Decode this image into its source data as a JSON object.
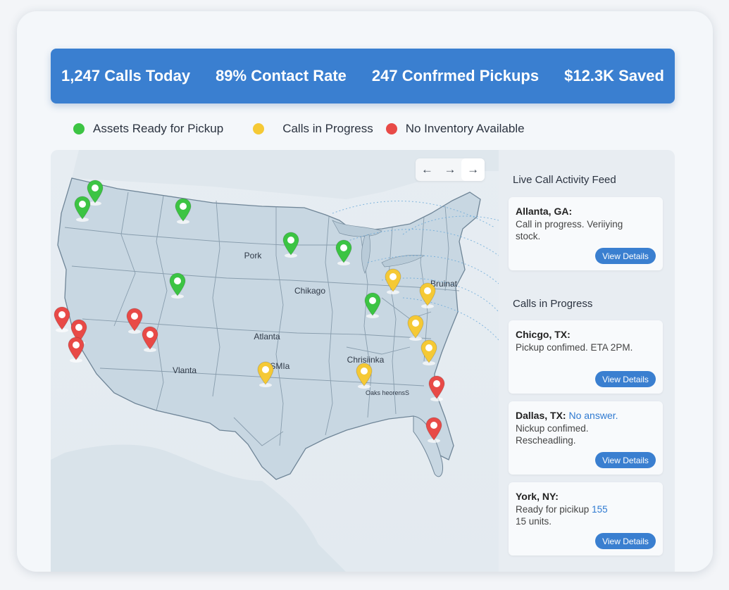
{
  "stats": [
    {
      "label": "1,247 Calls Today"
    },
    {
      "label": "89% Contact Rate"
    },
    {
      "label": "247 Confrmed Pickups"
    },
    {
      "label": "$12.3K Saved"
    }
  ],
  "legend": [
    {
      "label": "Assets Ready for Pickup",
      "color": "#3cc443"
    },
    {
      "label": "Calls in Progress",
      "color": "#f5c935"
    },
    {
      "label": "No Inventory Available",
      "color": "#e84a47"
    }
  ],
  "map": {
    "nav": {
      "back_icon": "←",
      "forward_icon": "→",
      "next_icon": "→"
    },
    "labels": {
      "l1": "Pork",
      "l2": "Chikago",
      "l3": "Atlanta",
      "l4": "Vlanta",
      "l5": "Bruinat",
      "l6": "Chrisiinka",
      "l7": "£SMIa",
      "l8": "Oaks heorensS"
    },
    "pin_colors": {
      "green": "#3cc443",
      "yellow": "#f5c935",
      "red": "#e84a47"
    }
  },
  "sidebar": {
    "feed_title": "Live Call Activity Feed",
    "progress_title": "Calls in Progress",
    "cards": [
      {
        "title": "Allanta, GA:",
        "title_highlight": "",
        "body": "Call in progress. Veriiying stock.",
        "body_highlight": "",
        "body_tail": "",
        "button": "View Details"
      },
      {
        "title": "Chicgo, TX:",
        "title_highlight": "",
        "body": "Pickup confimed. ETA 2PM.",
        "body_highlight": "",
        "body_tail": "",
        "button": "View Details"
      },
      {
        "title": "Dallas, TX:",
        "title_highlight": "No answer.",
        "body": "Nickup confimed. Rescheadling.",
        "body_highlight": "",
        "body_tail": "",
        "button": "View Details"
      },
      {
        "title": "York, NY:",
        "title_highlight": "",
        "body": "Ready for picikup ",
        "body_highlight": "155",
        "body_tail": "15 units.",
        "button": "View Details"
      }
    ]
  }
}
